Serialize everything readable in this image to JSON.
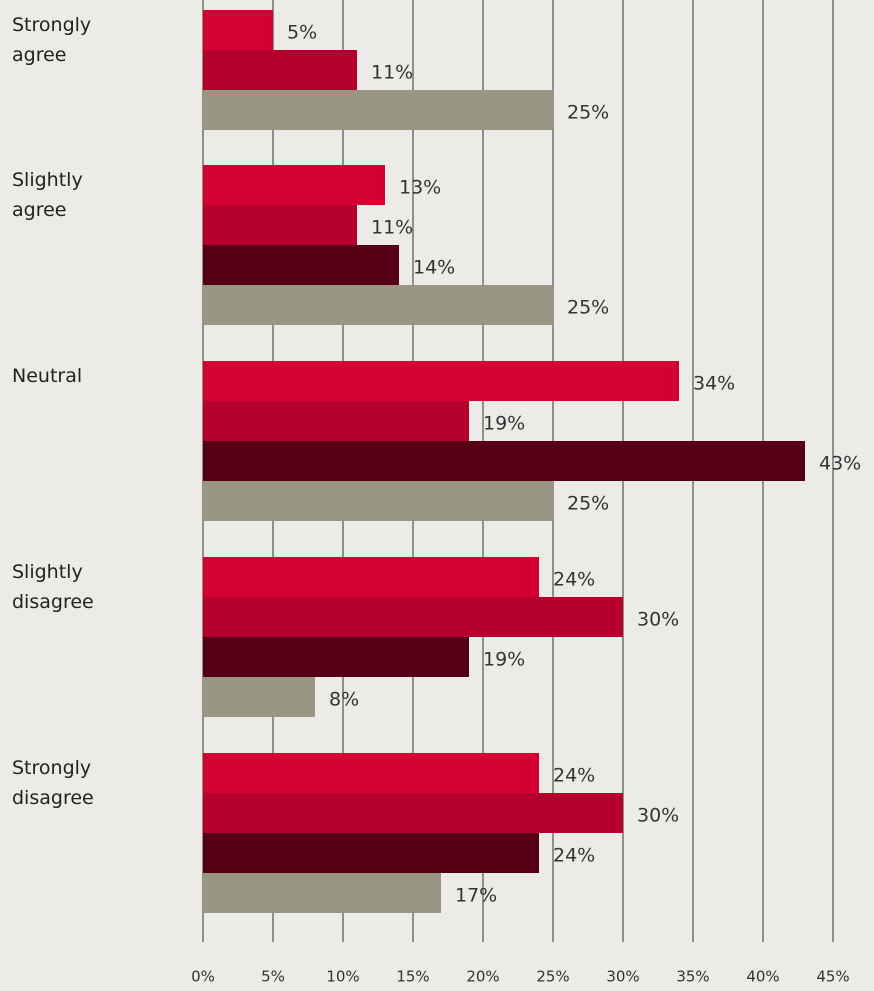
{
  "chart_data": {
    "type": "bar",
    "orientation": "horizontal",
    "categories": [
      "Strongly agree",
      "Slightly agree",
      "Neutral",
      "Slightly disagree",
      "Strongly disagree"
    ],
    "series": [
      {
        "color": "#d50032",
        "values": [
          5,
          13,
          34,
          24,
          24
        ],
        "value_labels": [
          "5%",
          "13%",
          "34%",
          "24%",
          "24%"
        ]
      },
      {
        "color": "#b5002e",
        "values": [
          11,
          11,
          19,
          30,
          30
        ],
        "value_labels": [
          "11%",
          "11%",
          "19%",
          "30%",
          "30%"
        ]
      },
      {
        "color": "#560016",
        "values": [
          null,
          14,
          43,
          19,
          24
        ],
        "value_labels": [
          null,
          "14%",
          "43%",
          "19%",
          "24%"
        ]
      },
      {
        "color": "#999683",
        "values": [
          25,
          25,
          25,
          8,
          17
        ],
        "value_labels": [
          "25%",
          "25%",
          "25%",
          "8%",
          "17%"
        ]
      }
    ],
    "xlim": [
      0,
      45
    ],
    "xticks": [
      {
        "value": 0,
        "label": "0%"
      },
      {
        "value": 5,
        "label": "5%"
      },
      {
        "value": 10,
        "label": "10%"
      },
      {
        "value": 15,
        "label": "15%"
      },
      {
        "value": 20,
        "label": "20%"
      },
      {
        "value": 25,
        "label": "25%"
      },
      {
        "value": 30,
        "label": "30%"
      },
      {
        "value": 35,
        "label": "35%"
      },
      {
        "value": 40,
        "label": "40%"
      },
      {
        "value": 45,
        "label": "45%"
      }
    ],
    "grid": true
  }
}
